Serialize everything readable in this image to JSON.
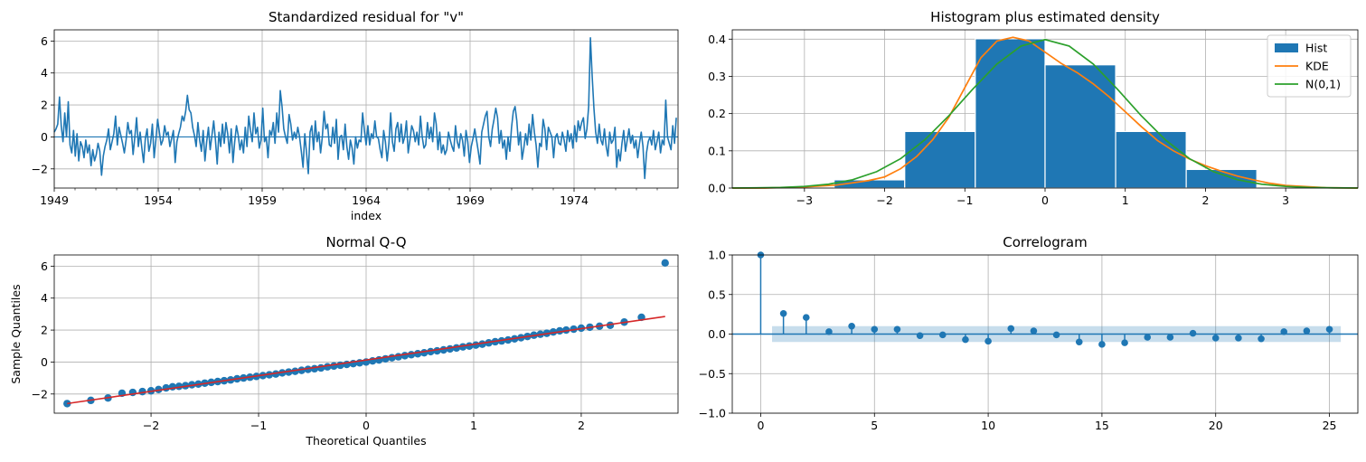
{
  "chart_data": [
    {
      "type": "line",
      "title": "Standardized residual for \"v\"",
      "xlabel": "index",
      "ylabel": "",
      "xlim": [
        1949,
        1979
      ],
      "ylim": [
        -3.2,
        6.7
      ],
      "x_ticks": [
        1949,
        1954,
        1959,
        1964,
        1969,
        1974
      ],
      "x_tick_labels": [
        "1949",
        "1954",
        "1959",
        "1964",
        "1969",
        "1974"
      ],
      "y_ticks": [
        -2,
        0,
        2,
        4,
        6
      ],
      "y_tick_labels": [
        "−2",
        "0",
        "2",
        "4",
        "6"
      ],
      "hline": 0,
      "grid": true,
      "color": "#1f77b4",
      "series": [
        {
          "start_year": 1949,
          "months": 360,
          "values": [
            0.3,
            0.5,
            0.8,
            2.5,
            0.7,
            -0.3,
            1.5,
            0.0,
            2.2,
            -0.5,
            -1.0,
            0.4,
            -1.2,
            0.2,
            -1.5,
            -0.3,
            -0.6,
            -1.3,
            -0.2,
            -1.0,
            -0.5,
            -1.8,
            -0.8,
            -1.5,
            -1.1,
            -0.4,
            -0.9,
            -2.4,
            -1.2,
            -0.6,
            -0.2,
            0.5,
            -0.8,
            -0.3,
            0.2,
            1.3,
            -0.5,
            0.6,
            0.1,
            -0.4,
            -1.0,
            -0.2,
            0.9,
            0.2,
            0.4,
            -1.1,
            0.0,
            1.2,
            -0.6,
            0.3,
            -0.7,
            -1.6,
            -0.1,
            0.5,
            -0.9,
            -0.4,
            0.8,
            -1.3,
            -0.2,
            1.1,
            0.3,
            -0.5,
            -0.2,
            0.7,
            0.1,
            0.3,
            -0.6,
            -0.1,
            0.4,
            -1.6,
            -0.3,
            0.2,
            0.6,
            1.3,
            1.0,
            1.6,
            2.6,
            1.7,
            1.5,
            0.6,
            0.1,
            -0.6,
            0.9,
            -0.2,
            -0.9,
            0.4,
            -1.5,
            -0.3,
            0.6,
            -0.8,
            0.1,
            1.0,
            -0.2,
            -1.7,
            0.3,
            -0.6,
            0.8,
            -0.4,
            0.9,
            0.2,
            -1.0,
            0.5,
            -1.6,
            -0.3,
            0.7,
            0.1,
            -0.8,
            -0.2,
            -1.0,
            0.6,
            -0.6,
            1.3,
            0.4,
            -0.3,
            1.5,
            0.2,
            0.6,
            -0.7,
            -0.2,
            1.8,
            -0.3,
            0.0,
            -1.3,
            0.4,
            0.1,
            0.9,
            -0.4,
            1.5,
            0.3,
            2.9,
            1.9,
            0.5,
            0.0,
            -0.4,
            1.4,
            0.8,
            -0.2,
            0.3,
            -0.1,
            0.6,
            0.0,
            -0.9,
            -1.9,
            0.2,
            -1.0,
            -2.3,
            0.3,
            0.7,
            -0.8,
            1.0,
            -0.3,
            0.3,
            -1.0,
            0.0,
            1.6,
            0.5,
            0.8,
            -0.5,
            -0.6,
            0.6,
            -0.4,
            1.1,
            -1.4,
            0.0,
            0.1,
            -0.8,
            0.8,
            -0.6,
            -1.4,
            -0.2,
            -0.7,
            -1.7,
            0.0,
            -0.7,
            -0.2,
            -0.3,
            1.5,
            0.4,
            -0.5,
            0.7,
            -0.5,
            0.2,
            -0.1,
            1.0,
            0.0,
            -0.1,
            -0.8,
            -1.3,
            0.4,
            -0.3,
            -1.5,
            -0.4,
            1.5,
            -0.3,
            -0.9,
            0.5,
            0.9,
            -0.3,
            0.8,
            -0.4,
            0.0,
            1.0,
            -1.0,
            -0.2,
            0.7,
            0.4,
            -0.3,
            0.3,
            -0.5,
            1.3,
            0.0,
            -0.7,
            -0.5,
            0.9,
            -0.1,
            0.6,
            -0.3,
            1.5,
            0.8,
            -0.8,
            0.3,
            -1.0,
            -0.5,
            -1.1,
            -0.8,
            0.3,
            -0.2,
            -0.6,
            -0.9,
            0.7,
            -0.3,
            -0.7,
            0.2,
            -0.2,
            -1.2,
            0.4,
            -0.3,
            -1.6,
            -0.6,
            -0.1,
            0.5,
            -0.2,
            -0.9,
            -1.7,
            0.3,
            0.8,
            1.3,
            1.6,
            0.0,
            -0.6,
            0.5,
            1.1,
            1.8,
            1.2,
            -0.4,
            0.4,
            -0.7,
            -0.2,
            -1.4,
            0.0,
            -0.9,
            0.6,
            1.6,
            1.9,
            1.0,
            -0.5,
            0.3,
            -1.4,
            -0.7,
            0.2,
            -0.5,
            0.8,
            -0.2,
            1.4,
            0.3,
            -0.5,
            -1.9,
            -0.4,
            -0.6,
            1.1,
            0.5,
            -0.8,
            0.6,
            0.3,
            0.0,
            -1.3,
            0.0,
            0.2,
            -0.4,
            -0.5,
            0.3,
            -0.2,
            -0.9,
            0.4,
            -0.3,
            0.2,
            -0.7,
            0.7,
            -0.3,
            1.0,
            0.4,
            0.9,
            1.2,
            -0.1,
            0.5,
            1.9,
            6.2,
            3.8,
            1.8,
            0.3,
            -0.4,
            0.8,
            -0.2,
            -0.5,
            0.5,
            -0.6,
            -1.2,
            0.3,
            -0.4,
            -0.2,
            0.6,
            -1.9,
            -0.8,
            -1.5,
            -0.4,
            0.4,
            -0.9,
            -0.2,
            0.5,
            -0.4,
            0.1,
            -0.7,
            -0.2,
            -1.3,
            -0.4,
            0.3,
            -0.6,
            -2.6,
            -1.0,
            -0.3,
            0.0,
            -0.5,
            0.4,
            -0.8,
            -0.3,
            0.3,
            -1.0,
            -0.2,
            -0.5,
            2.3,
            0.0,
            -0.4,
            -0.8,
            0.7,
            -0.4,
            1.2
          ]
        }
      ]
    },
    {
      "type": "bar",
      "title": "Histogram plus estimated density",
      "xlabel": "",
      "ylabel": "",
      "xlim": [
        -3.9,
        3.9
      ],
      "ylim": [
        0,
        0.425
      ],
      "x_ticks": [
        -3,
        -2,
        -1,
        0,
        1,
        2,
        3
      ],
      "x_tick_labels": [
        "−3",
        "−2",
        "−1",
        "0",
        "1",
        "2",
        "3"
      ],
      "y_ticks": [
        0,
        0.1,
        0.2,
        0.3,
        0.4
      ],
      "y_tick_labels": [
        "0.0",
        "0.1",
        "0.2",
        "0.3",
        "0.4"
      ],
      "grid": true,
      "legend_position": "top-right",
      "bins": [
        {
          "from": -2.63,
          "to": -1.75,
          "value": 0.022
        },
        {
          "from": -1.75,
          "to": -0.87,
          "value": 0.152
        },
        {
          "from": -0.87,
          "to": 0.0,
          "value": 0.401
        },
        {
          "from": 0.0,
          "to": 0.88,
          "value": 0.331
        },
        {
          "from": 0.88,
          "to": 1.76,
          "value": 0.152
        },
        {
          "from": 1.76,
          "to": 2.64,
          "value": 0.05
        }
      ],
      "series": [
        {
          "name": "Hist",
          "color": "#1f77b4"
        },
        {
          "name": "KDE",
          "color": "#ff7f0e",
          "x": [
            -3.9,
            -3.5,
            -3.0,
            -2.6,
            -2.2,
            -2.0,
            -1.8,
            -1.6,
            -1.4,
            -1.2,
            -1.0,
            -0.8,
            -0.6,
            -0.4,
            -0.2,
            0.0,
            0.2,
            0.4,
            0.6,
            0.8,
            1.0,
            1.2,
            1.4,
            1.6,
            1.8,
            2.0,
            2.2,
            2.4,
            2.6,
            2.8,
            3.0,
            3.5,
            3.9
          ],
          "values": [
            0.0,
            0.0,
            0.003,
            0.008,
            0.02,
            0.03,
            0.052,
            0.085,
            0.13,
            0.19,
            0.27,
            0.35,
            0.395,
            0.405,
            0.395,
            0.365,
            0.335,
            0.31,
            0.28,
            0.245,
            0.205,
            0.165,
            0.128,
            0.1,
            0.078,
            0.06,
            0.045,
            0.032,
            0.022,
            0.013,
            0.007,
            0.001,
            0.0
          ]
        },
        {
          "name": "N(0,1)",
          "color": "#2ca02c",
          "x": [
            -3.9,
            -3.6,
            -3.3,
            -3.0,
            -2.7,
            -2.4,
            -2.1,
            -1.8,
            -1.5,
            -1.2,
            -0.9,
            -0.6,
            -0.3,
            0.0,
            0.3,
            0.6,
            0.9,
            1.2,
            1.5,
            1.8,
            2.1,
            2.4,
            2.7,
            3.0,
            3.3,
            3.6,
            3.9
          ],
          "values": [
            0.0002,
            0.0006,
            0.0017,
            0.0044,
            0.0104,
            0.0224,
            0.044,
            0.079,
            0.1295,
            0.1942,
            0.2661,
            0.3332,
            0.3814,
            0.3989,
            0.3814,
            0.3332,
            0.2661,
            0.1942,
            0.1295,
            0.079,
            0.044,
            0.0224,
            0.0104,
            0.0044,
            0.0017,
            0.0006,
            0.0002
          ]
        }
      ]
    },
    {
      "type": "scatter",
      "title": "Normal Q-Q",
      "xlabel": "Theoretical Quantiles",
      "ylabel": "Sample Quantiles",
      "xlim": [
        -2.9,
        2.9
      ],
      "ylim": [
        -3.2,
        6.7
      ],
      "x_ticks": [
        -2,
        -1,
        0,
        1,
        2
      ],
      "x_tick_labels": [
        "−2",
        "−1",
        "0",
        "1",
        "2"
      ],
      "y_ticks": [
        -2,
        0,
        2,
        4,
        6
      ],
      "y_tick_labels": [
        "−2",
        "0",
        "2",
        "4",
        "6"
      ],
      "grid": true,
      "reference_line": {
        "x": [
          -2.78,
          2.78
        ],
        "y": [
          -2.6,
          2.85
        ],
        "color": "#d62728"
      },
      "points": {
        "color": "#1f77b4",
        "x": [
          -2.78,
          -2.56,
          -2.4,
          -2.27,
          -2.17,
          -2.08,
          -2.0,
          -1.93,
          -1.86,
          -1.8,
          -1.74,
          -1.68,
          -1.62,
          -1.56,
          -1.5,
          -1.44,
          -1.38,
          -1.32,
          -1.26,
          -1.2,
          -1.14,
          -1.08,
          -1.02,
          -0.96,
          -0.9,
          -0.84,
          -0.78,
          -0.72,
          -0.66,
          -0.6,
          -0.54,
          -0.48,
          -0.42,
          -0.36,
          -0.3,
          -0.24,
          -0.18,
          -0.12,
          -0.06,
          0.0,
          0.06,
          0.12,
          0.18,
          0.24,
          0.3,
          0.36,
          0.42,
          0.48,
          0.54,
          0.6,
          0.66,
          0.72,
          0.78,
          0.84,
          0.9,
          0.96,
          1.02,
          1.08,
          1.14,
          1.2,
          1.26,
          1.32,
          1.38,
          1.44,
          1.5,
          1.56,
          1.62,
          1.68,
          1.74,
          1.8,
          1.86,
          1.93,
          2.0,
          2.08,
          2.17,
          2.27,
          2.4,
          2.56,
          2.78
        ],
        "y": [
          -2.6,
          -2.4,
          -2.25,
          -1.95,
          -1.9,
          -1.85,
          -1.8,
          -1.72,
          -1.62,
          -1.55,
          -1.52,
          -1.48,
          -1.42,
          -1.38,
          -1.32,
          -1.27,
          -1.22,
          -1.17,
          -1.12,
          -1.05,
          -1.0,
          -0.95,
          -0.9,
          -0.85,
          -0.8,
          -0.75,
          -0.68,
          -0.63,
          -0.58,
          -0.52,
          -0.46,
          -0.42,
          -0.37,
          -0.3,
          -0.25,
          -0.2,
          -0.15,
          -0.1,
          -0.05,
          0.0,
          0.07,
          0.13,
          0.2,
          0.27,
          0.33,
          0.4,
          0.46,
          0.52,
          0.58,
          0.65,
          0.7,
          0.76,
          0.82,
          0.88,
          0.95,
          1.0,
          1.06,
          1.12,
          1.2,
          1.27,
          1.32,
          1.38,
          1.45,
          1.52,
          1.6,
          1.68,
          1.74,
          1.8,
          1.88,
          1.95,
          2.0,
          2.06,
          2.12,
          2.18,
          2.24,
          2.3,
          2.5,
          2.8,
          6.2
        ]
      }
    },
    {
      "type": "bar",
      "title": "Correlogram",
      "xlabel": "",
      "ylabel": "",
      "xlim": [
        -1.25,
        26.25
      ],
      "ylim": [
        -1.0,
        1.0
      ],
      "x_ticks": [
        0,
        5,
        10,
        15,
        20,
        25
      ],
      "x_tick_labels": [
        "0",
        "5",
        "10",
        "15",
        "20",
        "25"
      ],
      "y_ticks": [
        -1.0,
        -0.5,
        0.0,
        0.5,
        1.0
      ],
      "y_tick_labels": [
        "−1.0",
        "−0.5",
        "0.0",
        "0.5",
        "1.0"
      ],
      "grid": true,
      "confidence_band": {
        "from_lag": 0.5,
        "to_lag": 25.5,
        "lower": -0.1,
        "upper": 0.1,
        "color": "#1f77b4"
      },
      "color": "#1f77b4",
      "lags": [
        0,
        1,
        2,
        3,
        4,
        5,
        6,
        7,
        8,
        9,
        10,
        11,
        12,
        13,
        14,
        15,
        16,
        17,
        18,
        19,
        20,
        21,
        22,
        23,
        24,
        25
      ],
      "values": [
        1.0,
        0.26,
        0.21,
        0.03,
        0.1,
        0.06,
        0.06,
        -0.02,
        -0.01,
        -0.07,
        -0.09,
        0.07,
        0.04,
        -0.01,
        -0.1,
        -0.13,
        -0.11,
        -0.04,
        -0.04,
        0.01,
        -0.05,
        -0.05,
        -0.06,
        0.03,
        0.04,
        0.06
      ]
    }
  ]
}
